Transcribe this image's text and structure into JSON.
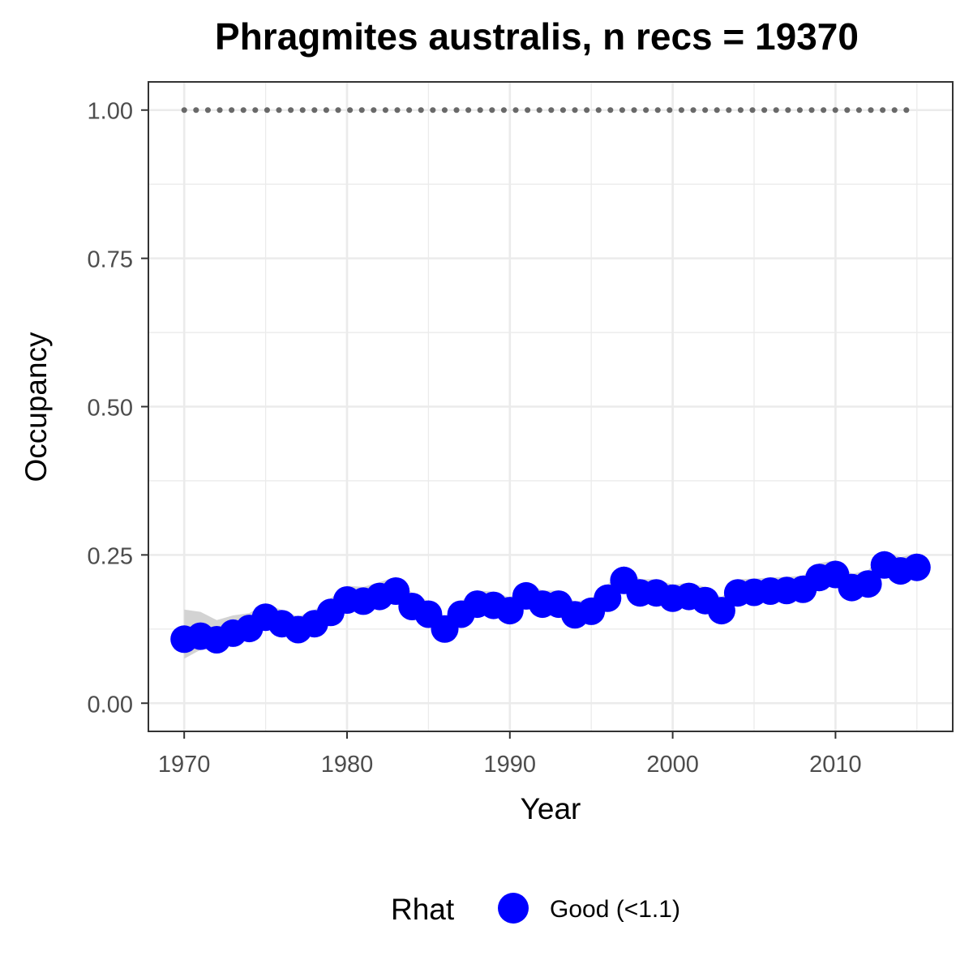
{
  "chart_data": {
    "type": "line",
    "title": "Phragmites australis, n recs = 19370",
    "xlabel": "Year",
    "ylabel": "Occupancy",
    "xlim": [
      1967.8,
      2017.2
    ],
    "ylim": [
      -0.0475,
      1.0475
    ],
    "x_ticks": [
      1970,
      1980,
      1990,
      2000,
      2010
    ],
    "x_tick_labels": [
      "1970",
      "1980",
      "1990",
      "2000",
      "2010"
    ],
    "y_ticks": [
      0,
      0.25,
      0.5,
      0.75,
      1
    ],
    "y_tick_labels": [
      "0.00",
      "0.25",
      "0.50",
      "0.75",
      "1.00"
    ],
    "grid": true,
    "legend": {
      "title": "Rhat",
      "position": "bottom",
      "entries": [
        {
          "label": "Good (<1.1)",
          "color": "#0000ff"
        }
      ]
    },
    "x": [
      1970,
      1971,
      1972,
      1973,
      1974,
      1975,
      1976,
      1977,
      1978,
      1979,
      1980,
      1981,
      1982,
      1983,
      1984,
      1985,
      1986,
      1987,
      1988,
      1989,
      1990,
      1991,
      1992,
      1993,
      1994,
      1995,
      1996,
      1997,
      1998,
      1999,
      2000,
      2001,
      2002,
      2003,
      2004,
      2005,
      2006,
      2007,
      2008,
      2009,
      2010,
      2011,
      2012,
      2013,
      2014,
      2015
    ],
    "series": [
      {
        "name": "Good (<1.1)",
        "color": "#0000ff",
        "values": [
          0.108,
          0.113,
          0.107,
          0.118,
          0.126,
          0.145,
          0.134,
          0.124,
          0.134,
          0.153,
          0.174,
          0.172,
          0.18,
          0.189,
          0.163,
          0.15,
          0.125,
          0.15,
          0.167,
          0.165,
          0.156,
          0.181,
          0.167,
          0.167,
          0.149,
          0.155,
          0.177,
          0.207,
          0.186,
          0.186,
          0.177,
          0.18,
          0.173,
          0.156,
          0.186,
          0.187,
          0.189,
          0.19,
          0.192,
          0.212,
          0.217,
          0.195,
          0.201,
          0.233,
          0.223,
          0.229
        ],
        "ci_lower": [
          0.075,
          0.09,
          0.092,
          0.101,
          0.112,
          0.13,
          0.121,
          0.112,
          0.121,
          0.139,
          0.16,
          0.159,
          0.167,
          0.176,
          0.151,
          0.139,
          0.115,
          0.139,
          0.155,
          0.153,
          0.145,
          0.169,
          0.155,
          0.155,
          0.138,
          0.144,
          0.165,
          0.194,
          0.174,
          0.174,
          0.165,
          0.168,
          0.161,
          0.145,
          0.174,
          0.175,
          0.177,
          0.178,
          0.18,
          0.199,
          0.204,
          0.183,
          0.189,
          0.219,
          0.209,
          0.214
        ],
        "ci_upper": [
          0.158,
          0.154,
          0.14,
          0.148,
          0.152,
          0.168,
          0.157,
          0.146,
          0.157,
          0.177,
          0.198,
          0.196,
          0.204,
          0.213,
          0.186,
          0.172,
          0.146,
          0.172,
          0.19,
          0.188,
          0.178,
          0.204,
          0.19,
          0.19,
          0.171,
          0.177,
          0.2,
          0.231,
          0.209,
          0.209,
          0.2,
          0.203,
          0.196,
          0.178,
          0.209,
          0.21,
          0.212,
          0.213,
          0.215,
          0.236,
          0.241,
          0.218,
          0.224,
          0.257,
          0.246,
          0.253
        ]
      }
    ],
    "reference_line": {
      "y": 1.0,
      "color": "#696969",
      "style": "dotted"
    },
    "ci_color": "#d3d3d3"
  }
}
